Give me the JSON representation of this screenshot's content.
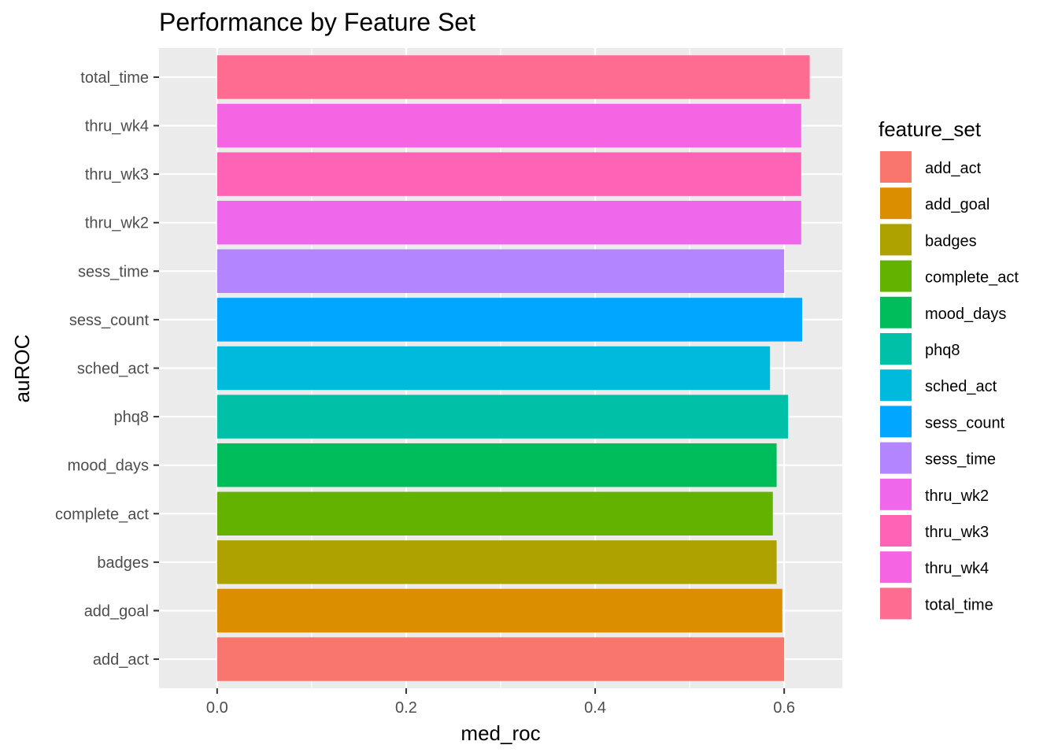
{
  "chart_data": {
    "type": "bar",
    "orientation": "horizontal",
    "title": "Performance by Feature Set",
    "xlabel": "med_roc",
    "ylabel": "auROC",
    "xlim": [
      -0.0615,
      0.6615
    ],
    "x_ticks": [
      0.0,
      0.2,
      0.4,
      0.6
    ],
    "x_tick_labels": [
      "0.0",
      "0.2",
      "0.4",
      "0.6"
    ],
    "grid": true,
    "legend_position": "right",
    "legend_title": "feature_set",
    "categories": [
      "add_act",
      "add_goal",
      "badges",
      "complete_act",
      "mood_days",
      "phq8",
      "sched_act",
      "sess_count",
      "sess_time",
      "thru_wk2",
      "thru_wk3",
      "thru_wk4",
      "total_time"
    ],
    "values": [
      0.6,
      0.598,
      0.592,
      0.588,
      0.592,
      0.604,
      0.585,
      0.619,
      0.6,
      0.618,
      0.618,
      0.618,
      0.627
    ],
    "colors": [
      "#F8766D",
      "#DB8E00",
      "#AEA200",
      "#64B200",
      "#00BD5C",
      "#00C1A7",
      "#00BADE",
      "#00A6FF",
      "#B385FF",
      "#EF67EB",
      "#FF63B6",
      "#F564E3",
      "#FF6C91"
    ]
  }
}
